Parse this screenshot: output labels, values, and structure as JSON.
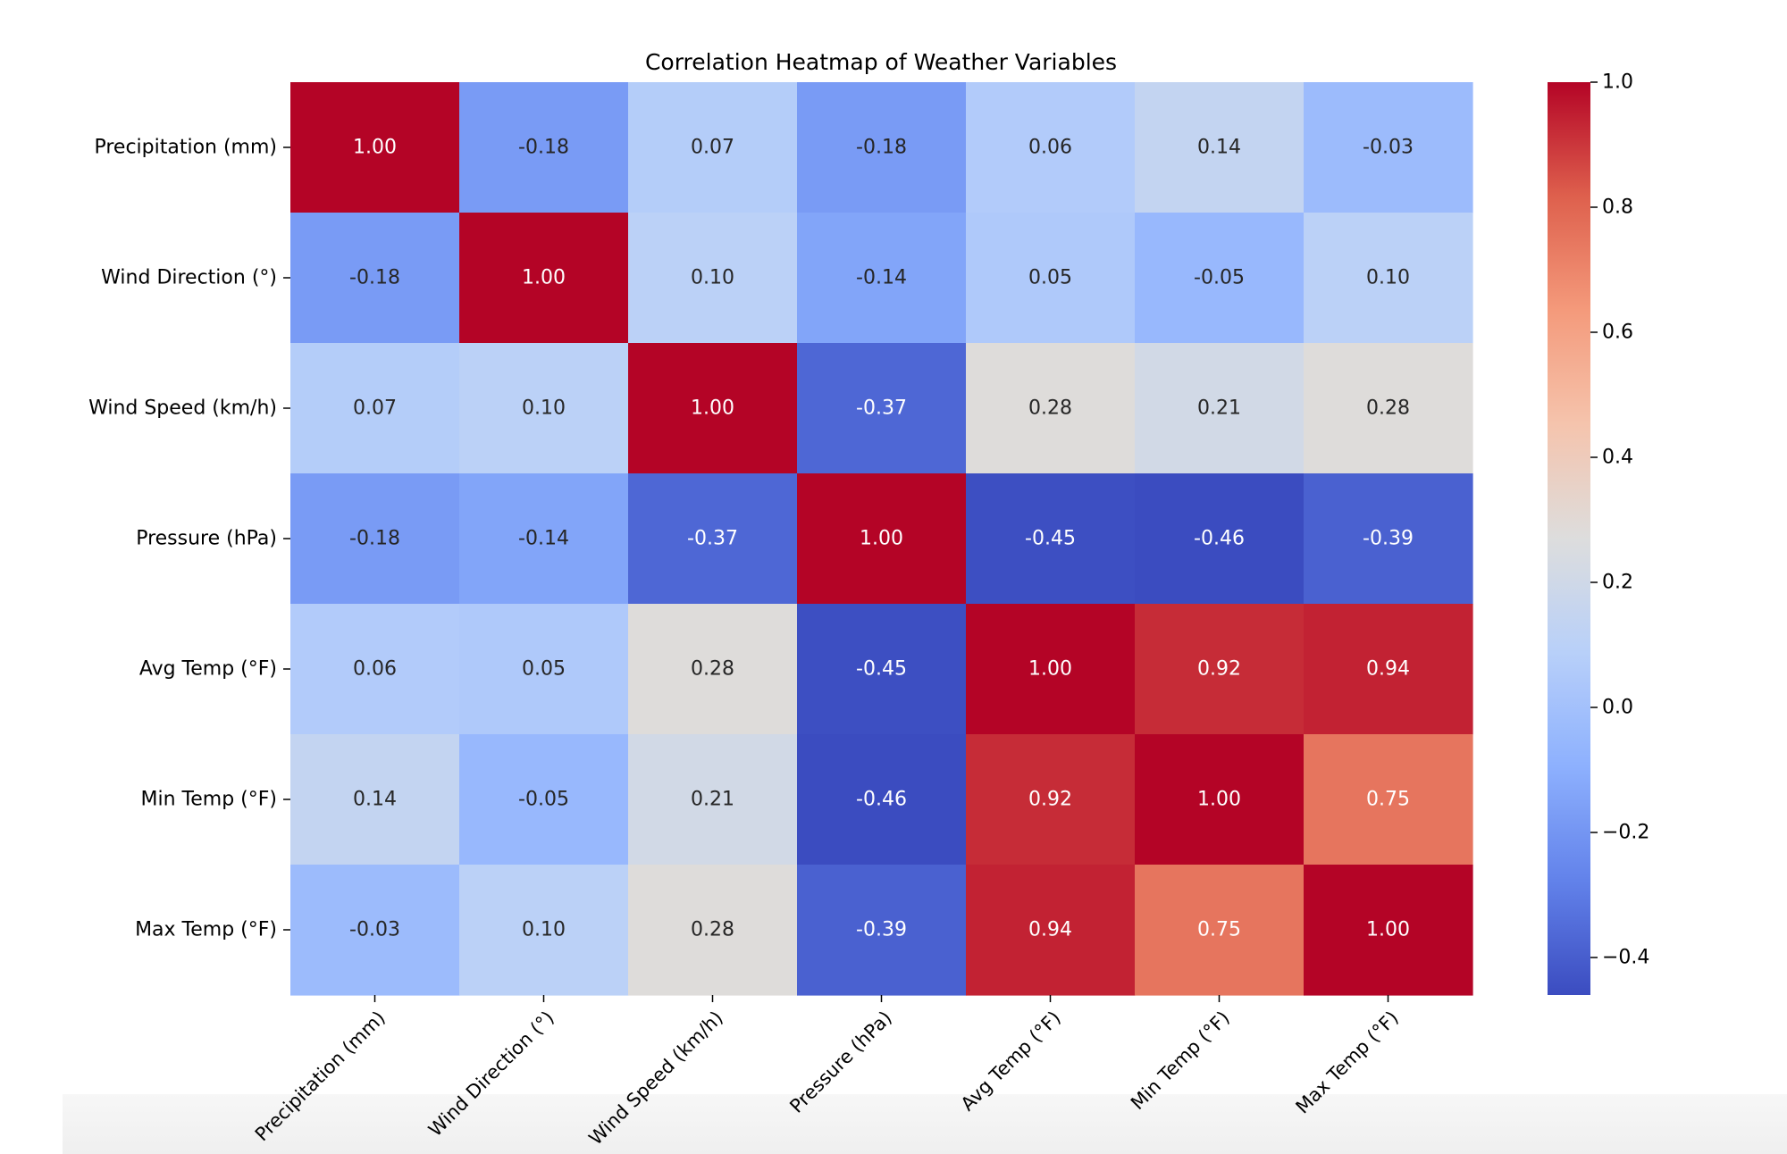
{
  "chart_data": {
    "type": "heatmap",
    "title": "Correlation Heatmap of Weather Variables",
    "xlabel": "",
    "ylabel": "",
    "x_categories": [
      "Precipitation (mm)",
      "Wind Direction (°)",
      "Wind Speed (km/h)",
      "Pressure (hPa)",
      "Avg Temp (°F)",
      "Min Temp (°F)",
      "Max Temp (°F)"
    ],
    "y_categories": [
      "Precipitation (mm)",
      "Wind Direction (°)",
      "Wind Speed (km/h)",
      "Pressure (hPa)",
      "Avg Temp (°F)",
      "Min Temp (°F)",
      "Max Temp (°F)"
    ],
    "values": [
      [
        1.0,
        -0.18,
        0.07,
        -0.18,
        0.06,
        0.14,
        -0.03
      ],
      [
        -0.18,
        1.0,
        0.1,
        -0.14,
        0.05,
        -0.05,
        0.1
      ],
      [
        0.07,
        0.1,
        1.0,
        -0.37,
        0.28,
        0.21,
        0.28
      ],
      [
        -0.18,
        -0.14,
        -0.37,
        1.0,
        -0.45,
        -0.46,
        -0.39
      ],
      [
        0.06,
        0.05,
        0.28,
        -0.45,
        1.0,
        0.92,
        0.94
      ],
      [
        0.14,
        -0.05,
        0.21,
        -0.46,
        0.92,
        1.0,
        0.75
      ],
      [
        -0.03,
        0.1,
        0.28,
        -0.39,
        0.94,
        0.75,
        1.0
      ]
    ],
    "annotation_format": "2 decimals",
    "colormap": "coolwarm",
    "color_range": [
      -0.46,
      1.0
    ],
    "colorbar": {
      "ticks": [
        1.0,
        0.8,
        0.6,
        0.4,
        0.2,
        0.0,
        -0.2,
        -0.4
      ],
      "tick_labels": [
        "1.0",
        "0.8",
        "0.6",
        "0.4",
        "0.2",
        "0.0",
        "−0.2",
        "−0.4"
      ],
      "placement": "right"
    },
    "x_tick_rotation_deg": 45,
    "grid": false
  }
}
